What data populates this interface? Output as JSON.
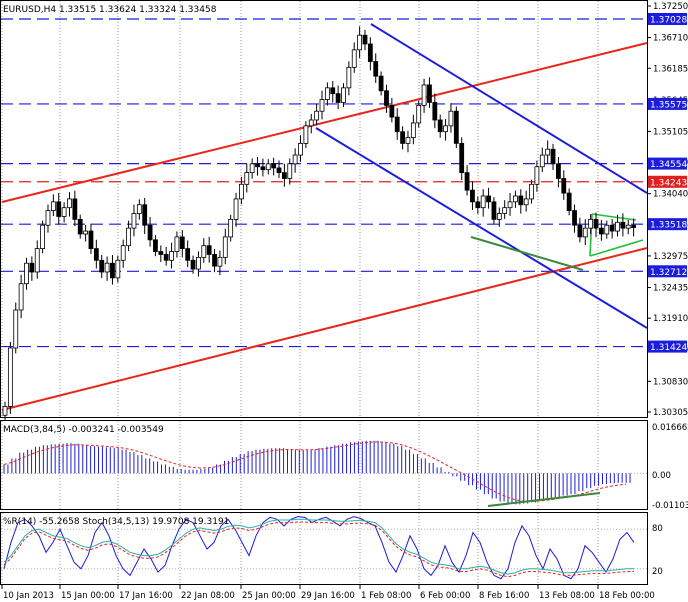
{
  "chart_data": {
    "type": "candlestick",
    "symbol": "EURUSD,H4",
    "ohlc_header": "EURUSD,H4  1.33515 1.33624 1.33324 1.33458",
    "price_axis": {
      "range": [
        1.30305,
        1.3725
      ],
      "ticks": [
        "1.37250",
        "1.36710",
        "1.36185",
        "1.35645",
        "1.35105",
        "1.34580",
        "1.34040",
        "1.33515",
        "1.32975",
        "1.32435",
        "1.31910",
        "1.31370",
        "1.30830",
        "1.30305"
      ]
    },
    "levels": [
      {
        "value": 1.37028,
        "label": "1.37028",
        "color": "#1c1cdc",
        "style": "dashed"
      },
      {
        "value": 1.35575,
        "label": "1.35575",
        "color": "#1c1cdc",
        "style": "dashed"
      },
      {
        "value": 1.34554,
        "label": "1.34554",
        "color": "#1c1cdc",
        "style": "dashed"
      },
      {
        "value": 1.34243,
        "label": "1.34243",
        "color": "#e02020",
        "style": "dashed"
      },
      {
        "value": 1.33518,
        "label": "1.33518",
        "color": "#1c1cdc",
        "style": "dashed"
      },
      {
        "value": 1.32712,
        "label": "1.32712",
        "color": "#1c1cdc",
        "style": "dashed"
      },
      {
        "value": 1.31424,
        "label": "1.31424",
        "color": "#1c1cdc",
        "style": "dashed"
      }
    ],
    "time_axis": [
      "10 Jan 2013",
      "15 Jan 00:00",
      "17 Jan 16:00",
      "22 Jan 08:00",
      "25 Jan 00:00",
      "29 Jan 16:00",
      "1 Feb 08:00",
      "6 Feb 00:00",
      "8 Feb 16:00",
      "13 Feb 08:00",
      "18 Feb 00:00"
    ],
    "close_series": [
      1.304,
      1.314,
      1.3205,
      1.325,
      1.3285,
      1.327,
      1.331,
      1.335,
      1.3375,
      1.339,
      1.3365,
      1.338,
      1.3395,
      1.336,
      1.3335,
      1.334,
      1.331,
      1.329,
      1.327,
      1.3285,
      1.326,
      1.329,
      1.3315,
      1.3345,
      1.337,
      1.3385,
      1.335,
      1.3325,
      1.3305,
      1.33,
      1.329,
      1.3305,
      1.333,
      1.331,
      1.329,
      1.3275,
      1.3295,
      1.3315,
      1.33,
      1.328,
      1.3295,
      1.333,
      1.336,
      1.3395,
      1.342,
      1.344,
      1.3455,
      1.345,
      1.3445,
      1.3455,
      1.3448,
      1.344,
      1.343,
      1.3455,
      1.347,
      1.349,
      1.352,
      1.353,
      1.3545,
      1.3565,
      1.3585,
      1.3575,
      1.356,
      1.3585,
      1.362,
      1.365,
      1.3675,
      1.366,
      1.363,
      1.3605,
      1.358,
      1.3555,
      1.3535,
      1.351,
      1.349,
      1.35,
      1.3525,
      1.3555,
      1.359,
      1.356,
      1.353,
      1.351,
      1.352,
      1.3545,
      1.349,
      1.344,
      1.341,
      1.339,
      1.338,
      1.34,
      1.339,
      1.336,
      1.337,
      1.338,
      1.339,
      1.34,
      1.3385,
      1.3395,
      1.342,
      1.345,
      1.347,
      1.348,
      1.3455,
      1.343,
      1.3405,
      1.3375,
      1.335,
      1.333,
      1.3345,
      1.336,
      1.3345,
      1.3335,
      1.335,
      1.334,
      1.3355,
      1.3345,
      1.335,
      1.3346
    ],
    "macd": {
      "label": "MACD(3,84,5) -0.003241 -0.003549",
      "range": [
        -0.01103,
        0.016662
      ],
      "ticks": [
        "0.016662",
        "0.00",
        "-0.01103"
      ],
      "histogram": [
        0.003,
        0.005,
        0.007,
        0.008,
        0.009,
        0.0095,
        0.0098,
        0.01,
        0.0102,
        0.01,
        0.0095,
        0.0092,
        0.009,
        0.0088,
        0.0085,
        0.008,
        0.0072,
        0.0062,
        0.005,
        0.004,
        0.003,
        0.0022,
        0.0015,
        0.0012,
        0.0012,
        0.0015,
        0.002,
        0.003,
        0.0042,
        0.0055,
        0.0065,
        0.0075,
        0.008,
        0.0083,
        0.0085,
        0.0085,
        0.0082,
        0.008,
        0.0078,
        0.008,
        0.0085,
        0.009,
        0.0095,
        0.01,
        0.0105,
        0.0108,
        0.011,
        0.011,
        0.0105,
        0.01,
        0.0092,
        0.008,
        0.0065,
        0.005,
        0.0035,
        0.002,
        0.0005,
        -0.001,
        -0.0025,
        -0.004,
        -0.0055,
        -0.007,
        -0.0085,
        -0.0095,
        -0.0102,
        -0.0105,
        -0.0102,
        -0.0098,
        -0.009,
        -0.0085,
        -0.008,
        -0.0075,
        -0.007,
        -0.006,
        -0.005,
        -0.0042,
        -0.0036,
        -0.0033,
        -0.0032,
        -0.0032
      ]
    },
    "oscillator": {
      "label": "%R(14) -55.2658  Stoch(34,5,13) 19.9708 19.3191",
      "ticks": [
        "80",
        "20"
      ]
    }
  }
}
